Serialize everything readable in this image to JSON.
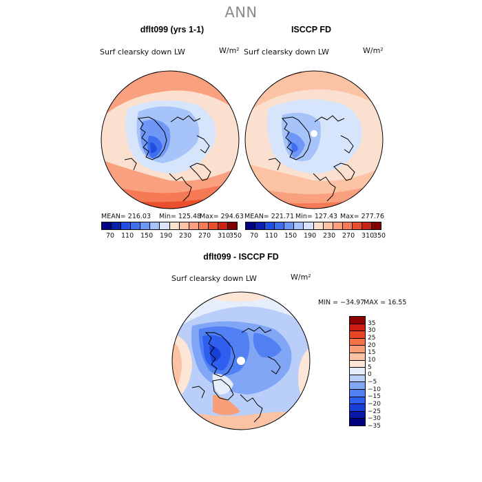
{
  "title": "ANN",
  "colors": {
    "abs_scale": [
      "#00007f",
      "#0a1fb0",
      "#1f4ee0",
      "#3f6ef0",
      "#6f97f5",
      "#a6c4f9",
      "#d6e5fb",
      "#fbe0cf",
      "#fbc2a4",
      "#f9a07f",
      "#f57a55",
      "#ea4f2e",
      "#c82215",
      "#7f0000"
    ],
    "diff_scale": [
      "#00007f",
      "#0818a8",
      "#1a3fd6",
      "#2f5fee",
      "#5080f2",
      "#82a6f6",
      "#b9cff9",
      "#e6eefc",
      "#fde6d6",
      "#fbc3a3",
      "#f89e78",
      "#f27348",
      "#e84526",
      "#cc1d10",
      "#8f0000"
    ]
  },
  "panels": {
    "left": {
      "title": "dflt099 (yrs 1-1)",
      "var_name": "Surf clearsky down LW",
      "units": "W/m²",
      "stats": {
        "mean": "MEAN= 216.03",
        "min": "Min= 125.48",
        "max": "Max= 294.63"
      },
      "colorbar_ticks": [
        "70",
        "110",
        "150",
        "190",
        "230",
        "270",
        "310",
        "350"
      ]
    },
    "right": {
      "title": "ISCCP FD",
      "var_name": "Surf clearsky down LW",
      "units": "W/m²",
      "stats": {
        "mean": "MEAN= 221.71",
        "min": "Min= 127.43",
        "max": "Max= 277.76"
      },
      "colorbar_ticks": [
        "70",
        "110",
        "150",
        "190",
        "230",
        "270",
        "310",
        "350"
      ]
    },
    "diff": {
      "title": "dflt099 - ISCCP FD",
      "var_name": "Surf clearsky down LW",
      "units": "W/m²",
      "stats": {
        "min": "MIN = −34.97",
        "max": "MAX =  16.55"
      },
      "colorbar_ticks": [
        "35",
        "30",
        "25",
        "20",
        "15",
        "10",
        "5",
        "0",
        "−5",
        "−10",
        "−15",
        "−20",
        "−25",
        "−30",
        "−35"
      ]
    }
  }
}
